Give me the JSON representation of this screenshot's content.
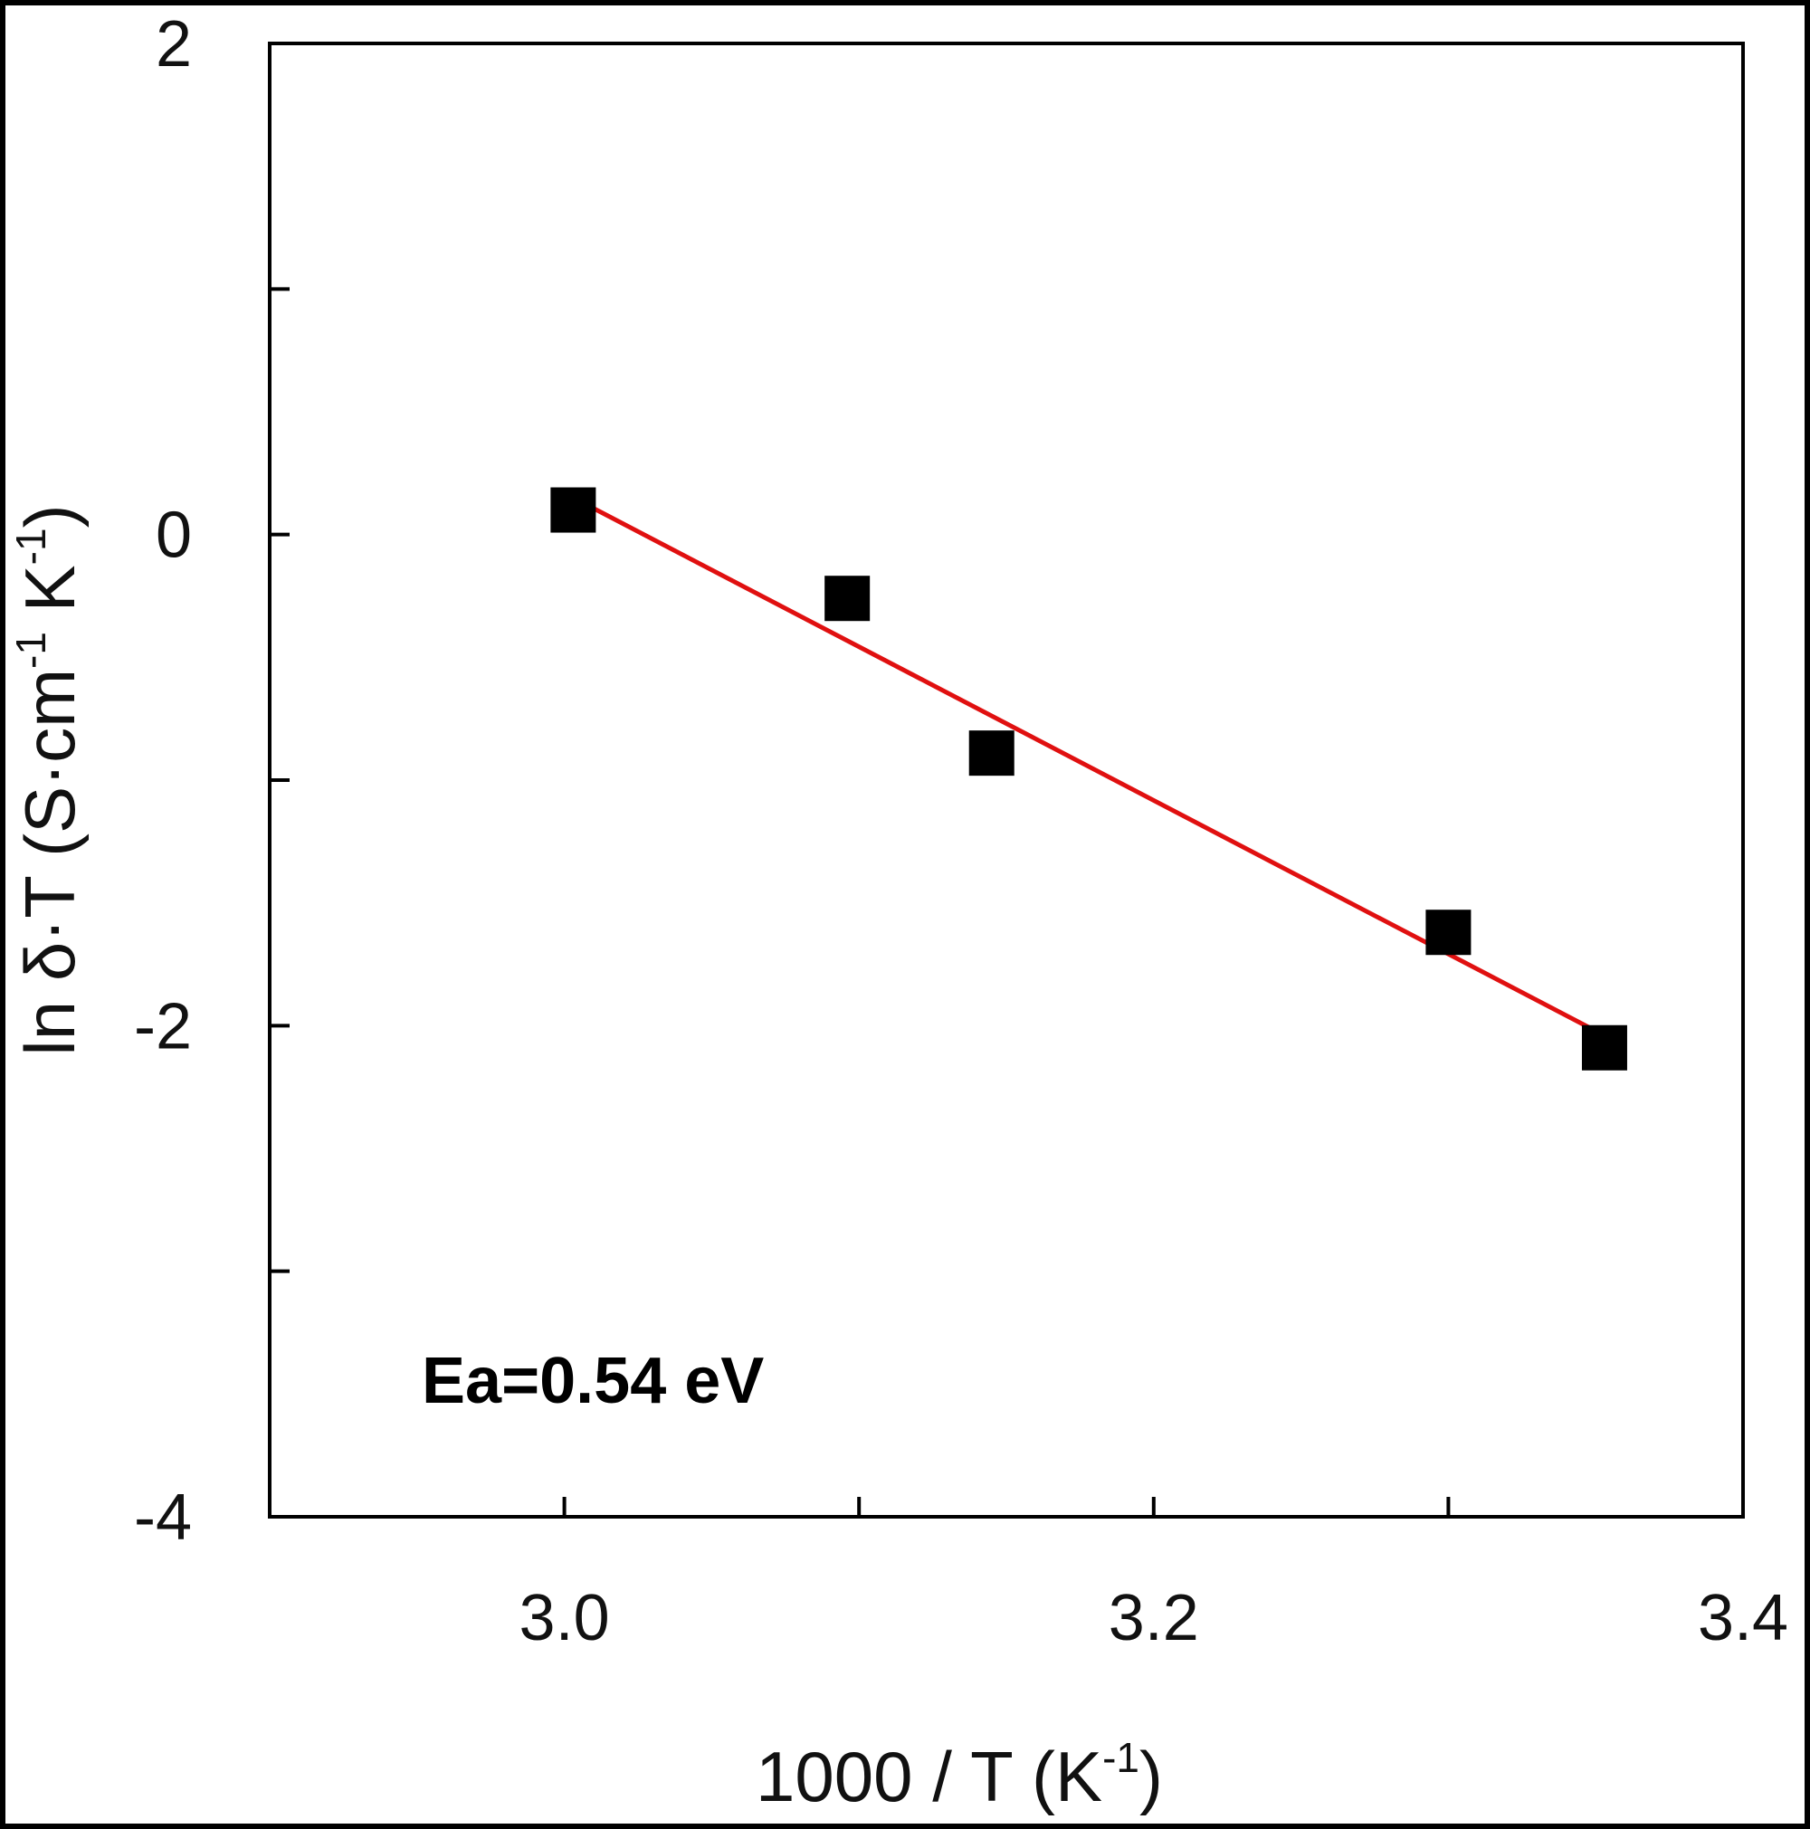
{
  "chart_data": {
    "type": "scatter",
    "xlabel": "1000 / T (K",
    "xlabel_sup": "-1",
    "xlabel_tail": ")",
    "ylabel_main": "ln δ·T (S·cm",
    "ylabel_sup1": "-1",
    "ylabel_mid": " K",
    "ylabel_sup2": "-1",
    "ylabel_tail": ")",
    "xlim": [
      2.9,
      3.4
    ],
    "ylim": [
      -4,
      2
    ],
    "x_ticks": [
      3.0,
      3.1,
      3.2,
      3.3,
      3.4
    ],
    "x_tick_labels": [
      "3.0",
      "",
      "3.2",
      "",
      "3.4"
    ],
    "y_ticks": [
      2,
      1,
      0,
      -1,
      -2,
      -3,
      -4
    ],
    "y_tick_labels": [
      "2",
      "",
      "0",
      "",
      "-2",
      "",
      "-4"
    ],
    "grid": false,
    "series": [
      {
        "marker": "square",
        "color": "#000000",
        "x": [
          3.003,
          3.096,
          3.145,
          3.3,
          3.353
        ],
        "y": [
          0.1,
          -0.26,
          -0.89,
          -1.62,
          -2.09
        ]
      }
    ],
    "fit_line": {
      "color": "#e01010",
      "x": [
        3.003,
        3.353
      ],
      "y": [
        0.15,
        -2.04
      ]
    },
    "annotation": "Ea=0.54 eV"
  }
}
